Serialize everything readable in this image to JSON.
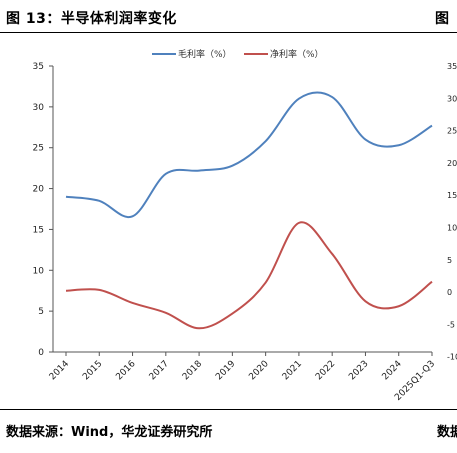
{
  "header": {
    "title": "图 13：半导体利润率变化",
    "right_fragment": "图"
  },
  "footer": {
    "source": "数据来源：Wind，华龙证券研究所",
    "right_fragment": "数据"
  },
  "chart_data": {
    "type": "line",
    "title": "",
    "xlabel": "",
    "ylabel": "",
    "categories": [
      "2014",
      "2015",
      "2016",
      "2017",
      "2018",
      "2019",
      "2020",
      "2021",
      "2022",
      "2023",
      "2024",
      "2025Q1-Q3"
    ],
    "ylim": [
      0,
      35
    ],
    "yticks": [
      0,
      5,
      10,
      15,
      20,
      25,
      30,
      35
    ],
    "grid": false,
    "legend_position": "top-center",
    "series": [
      {
        "name": "毛利率（%）",
        "color": "#4f81bd",
        "values": [
          19.0,
          18.5,
          16.6,
          21.8,
          22.2,
          22.8,
          25.8,
          31.0,
          31.2,
          26.0,
          25.3,
          27.7
        ]
      },
      {
        "name": "净利率（%）",
        "color": "#c0504d",
        "values": [
          7.5,
          7.6,
          6.0,
          4.8,
          2.9,
          4.7,
          8.5,
          15.8,
          12.0,
          6.2,
          5.6,
          8.6
        ]
      }
    ]
  },
  "adjacent_chart": {
    "yticks": [
      "35",
      "30",
      "25",
      "20",
      "15",
      "10",
      "5",
      "0",
      "-5",
      "-10"
    ]
  }
}
